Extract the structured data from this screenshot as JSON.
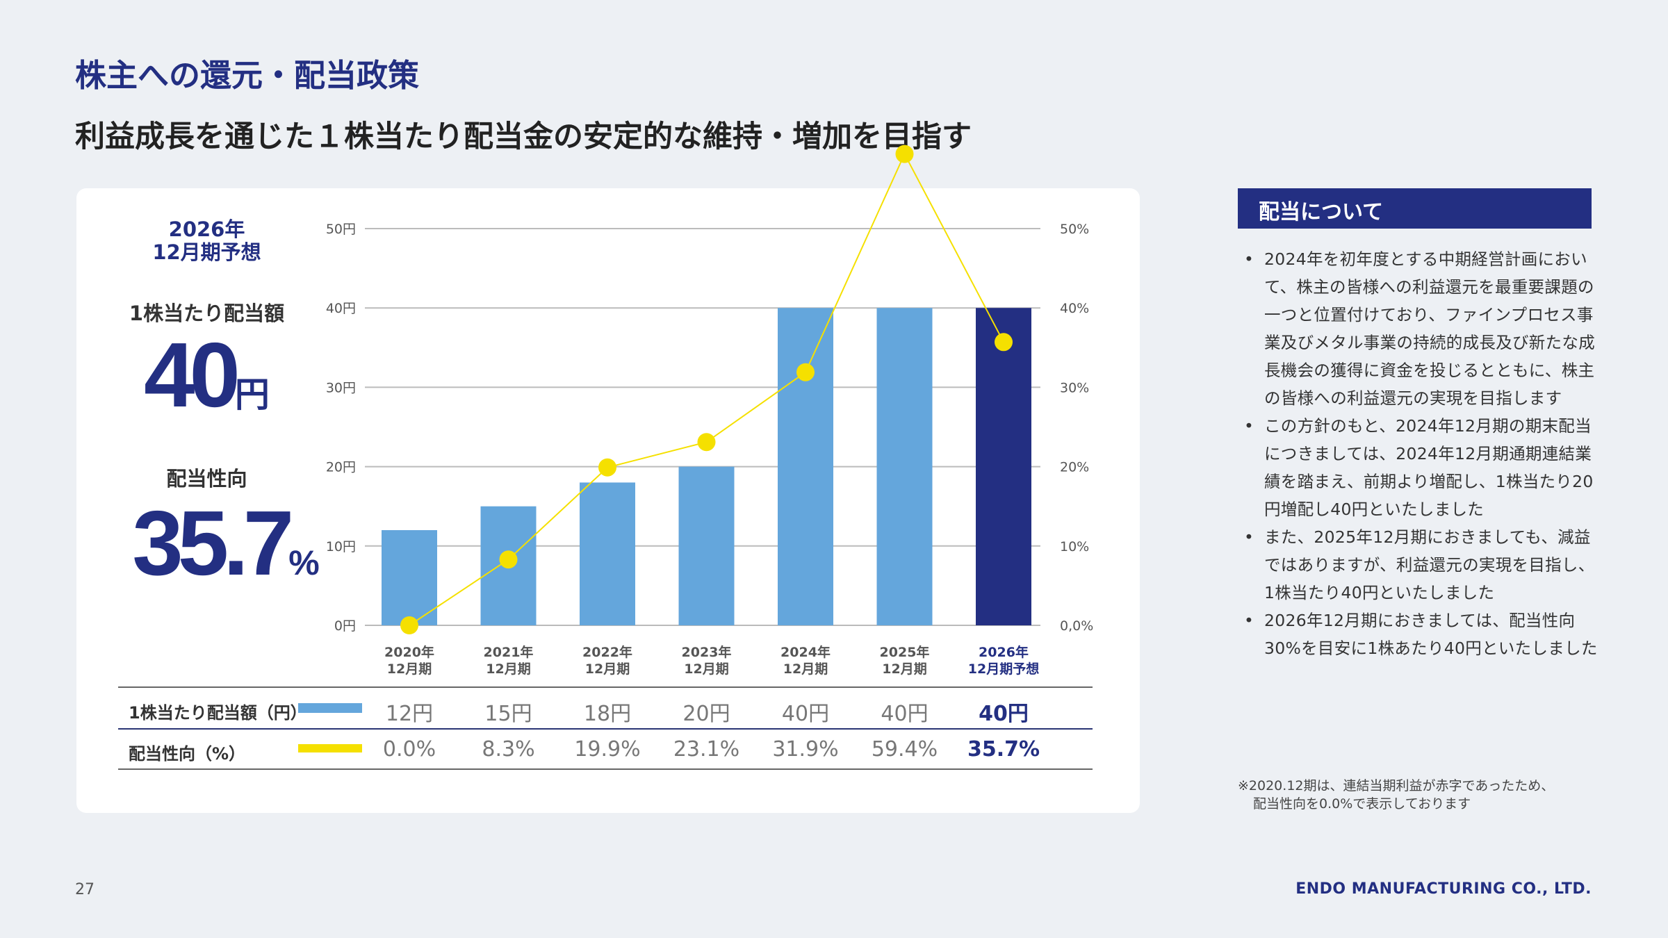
{
  "header": {
    "title": "株主への還元・配当政策",
    "subtitle": "利益成長を通じた１株当たり配当金の安定的な維持・増加を目指す"
  },
  "highlight": {
    "forecast_period_line1": "2026年",
    "forecast_period_line2": "12月期予想",
    "dps_label": "1株当たり配当額",
    "dps_value": "40",
    "dps_unit": "円",
    "payout_label": "配当性向",
    "payout_value": "35.7",
    "payout_unit": "%"
  },
  "chart_data": {
    "type": "bar",
    "categories": [
      [
        "2020年",
        "12月期"
      ],
      [
        "2021年",
        "12月期"
      ],
      [
        "2022年",
        "12月期"
      ],
      [
        "2023年",
        "12月期"
      ],
      [
        "2024年",
        "12月期"
      ],
      [
        "2025年",
        "12月期"
      ],
      [
        "2026年",
        "12月期予想"
      ]
    ],
    "series": [
      {
        "name": "1株当たり配当額（円）",
        "type": "bar",
        "axis": "left",
        "values": [
          12,
          15,
          18,
          20,
          40,
          40,
          40
        ],
        "colors": [
          "#64a6dc",
          "#64a6dc",
          "#64a6dc",
          "#64a6dc",
          "#64a6dc",
          "#64a6dc",
          "#232f82"
        ]
      },
      {
        "name": "配当性向（%）",
        "type": "line",
        "axis": "right",
        "values": [
          0.0,
          8.3,
          19.9,
          23.1,
          31.9,
          59.4,
          35.7
        ],
        "color": "#f5e000"
      }
    ],
    "left_axis": {
      "range": [
        0,
        50
      ],
      "ticks": [
        "0円",
        "10円",
        "20円",
        "30円",
        "40円",
        "50円"
      ]
    },
    "right_axis": {
      "range": [
        0,
        50
      ],
      "ticks": [
        "0,0%",
        "10%",
        "20%",
        "30%",
        "40%",
        "50%"
      ]
    },
    "grid": true
  },
  "table": {
    "rows": [
      {
        "label": "1株当たり配当額（円）",
        "color": "#64a6dc",
        "values": [
          "12円",
          "15円",
          "18円",
          "20円",
          "40円",
          "40円",
          "40円"
        ]
      },
      {
        "label": "配当性向（%）",
        "color": "#f5e000",
        "values": [
          "0.0%",
          "8.3%",
          "19.9%",
          "23.1%",
          "31.9%",
          "59.4%",
          "35.7%"
        ]
      }
    ]
  },
  "side_panel": {
    "heading": "配当について",
    "bullets": [
      "2024年を初年度とする中期経営計画において、株主の皆様への利益還元を最重要課題の一つと位置付けており、ファインプロセス事業及びメタル事業の持続的成長及び新たな成長機会の獲得に資金を投じるとともに、株主の皆様への利益還元の実現を目指します",
      "この方針のもと、2024年12月期の期末配当につきましては、2024年12月期通期連結業績を踏まえ、前期より増配し、1株当たり20円増配し40円といたしました",
      "また、2025年12月期におきましても、減益ではありますが、利益還元の実現を目指し、1株当たり40円といたしました",
      "2026年12月期におきましては、配当性向30%を目安に1株あたり40円といたしました"
    ],
    "footnote_line1": "※2020.12期は、連結当期利益が赤字であったため、",
    "footnote_line2": "配当性向を0.0%で表示しております"
  },
  "footer": {
    "page_number": "27",
    "company": "ENDO MANUFACTURING CO., LTD."
  }
}
